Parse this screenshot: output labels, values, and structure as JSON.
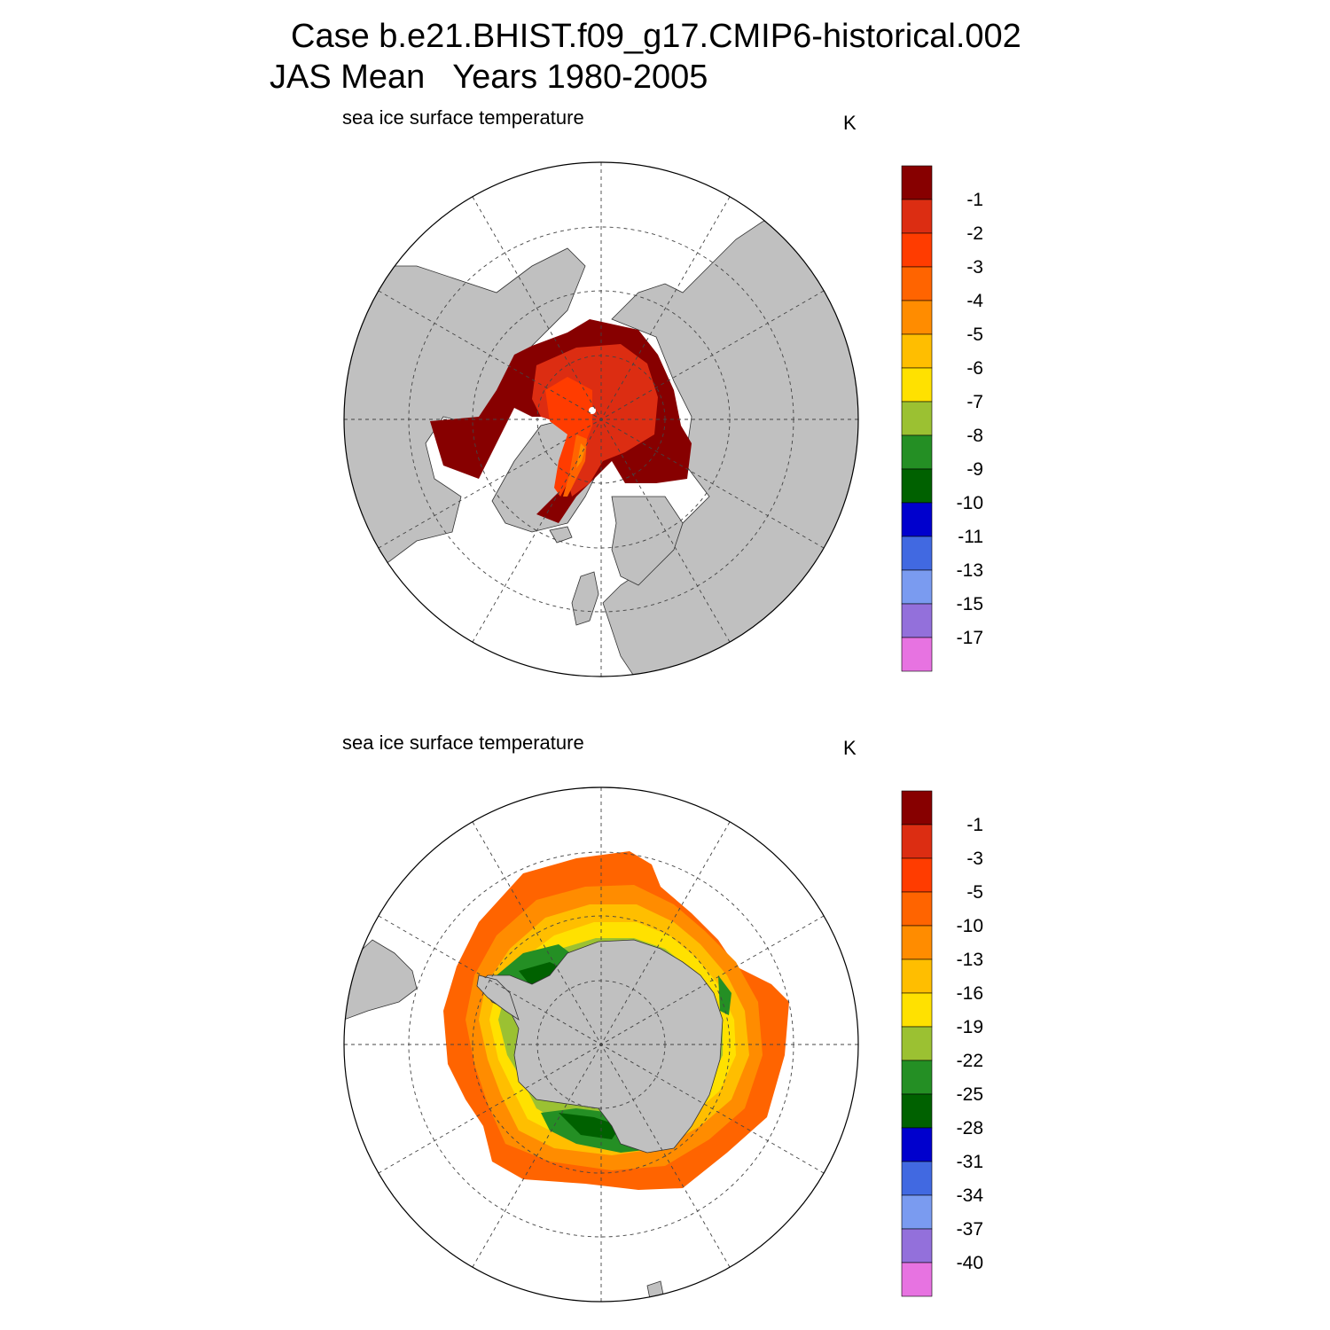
{
  "title_line1": "Case b.e21.BHIST.f09_g17.CMIP6-historical.002",
  "title_line2": "JAS Mean   Years 1980-2005",
  "colors": {
    "land": "#c0c0c0",
    "ocean": "#ffffff"
  },
  "panels": [
    {
      "name": "north",
      "variable_label": "sea ice surface temperature",
      "units_label": "K",
      "colorbar": {
        "colors": [
          "#870000",
          "#dc2d12",
          "#ff3c00",
          "#ff6400",
          "#ff8c00",
          "#ffbe00",
          "#ffe100",
          "#9bc132",
          "#248f24",
          "#006100",
          "#0000cd",
          "#4169e1",
          "#7a9bf0",
          "#9370db",
          "#e773e1"
        ],
        "labels": [
          "-1",
          "-2",
          "-3",
          "-4",
          "-5",
          "-6",
          "-7",
          "-8",
          "-9",
          "-10",
          "-11",
          "-13",
          "-15",
          "-17"
        ]
      }
    },
    {
      "name": "south",
      "variable_label": "sea ice surface temperature",
      "units_label": "K",
      "colorbar": {
        "colors": [
          "#870000",
          "#dc2d12",
          "#ff3c00",
          "#ff6400",
          "#ff8c00",
          "#ffbe00",
          "#ffe100",
          "#9bc132",
          "#248f24",
          "#006100",
          "#0000cd",
          "#4169e1",
          "#7a9bf0",
          "#9370db",
          "#e773e1"
        ],
        "labels": [
          "-1",
          "-3",
          "-5",
          "-10",
          "-13",
          "-16",
          "-19",
          "-22",
          "-25",
          "-28",
          "-31",
          "-34",
          "-37",
          "-40"
        ]
      }
    }
  ]
}
